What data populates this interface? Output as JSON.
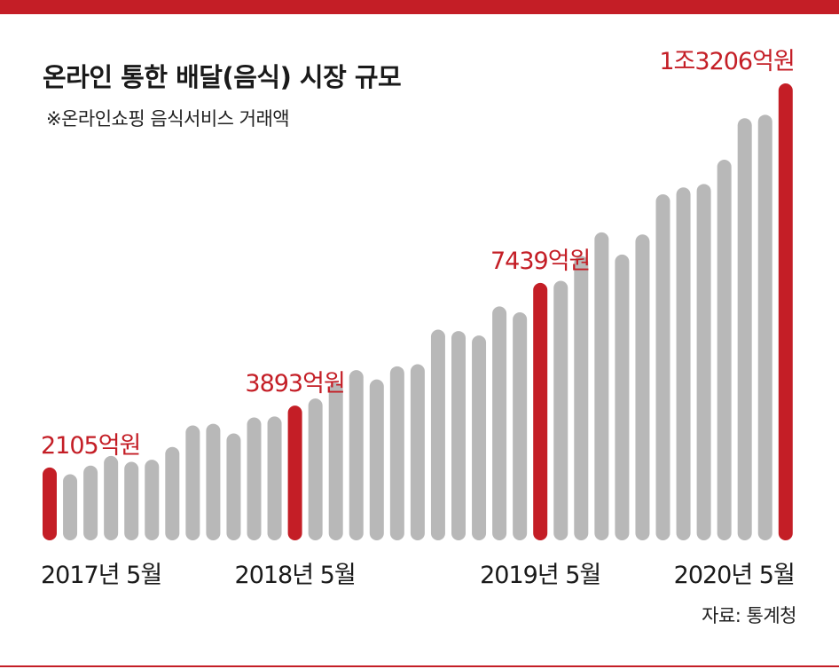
{
  "header": {
    "title": "온라인 통한 배달(음식) 시장 규모",
    "subtitle": "※온라인쇼핑 음식서비스 거래액"
  },
  "footer": {
    "source": "자료: 통계청"
  },
  "colors": {
    "accent": "#c41e26",
    "bar": "#b8b8b8",
    "highlight": "#c41e26"
  },
  "chart_data": {
    "type": "bar",
    "title": "온라인 통한 배달(음식) 시장 규모",
    "subtitle": "※온라인쇼핑 음식서비스 거래액",
    "unit": "억원",
    "ylim": [
      0,
      13500
    ],
    "grid": false,
    "legend": "none",
    "x_tick_labels": [
      {
        "index": 0,
        "label": "2017년 5월"
      },
      {
        "index": 12,
        "label": "2018년 5월"
      },
      {
        "index": 24,
        "label": "2019년 5월"
      },
      {
        "index": 36,
        "label": "2020년 5월"
      }
    ],
    "values": [
      2105,
      1910,
      2160,
      2440,
      2270,
      2330,
      2700,
      3320,
      3370,
      3090,
      3550,
      3580,
      3893,
      4100,
      4560,
      4920,
      4650,
      5030,
      5090,
      6090,
      6050,
      5920,
      6760,
      6590,
      7439,
      7500,
      8220,
      8900,
      8260,
      8840,
      10000,
      10200,
      10300,
      11000,
      12200,
      12300,
      13206
    ],
    "highlight_indices": [
      0,
      12,
      24,
      36
    ],
    "data_labels": [
      {
        "index": 0,
        "text": "2105억원"
      },
      {
        "index": 12,
        "text": "3893억원"
      },
      {
        "index": 24,
        "text": "7439억원"
      },
      {
        "index": 36,
        "text": "1조3206억원"
      }
    ]
  }
}
